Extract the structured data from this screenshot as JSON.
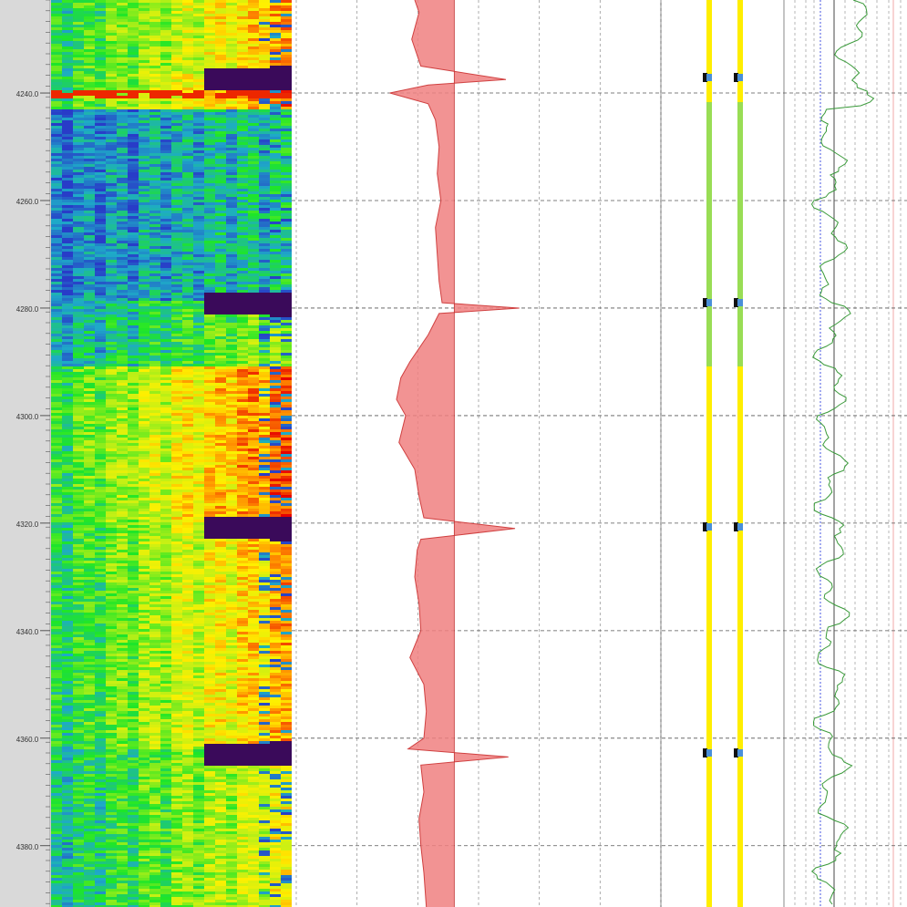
{
  "chart_data": {
    "type": "well-log",
    "ylim": [
      4222.7,
      4391.4
    ],
    "yticks": [
      {
        "value": 4240,
        "label": "4240.0"
      },
      {
        "value": 4260,
        "label": "4260.0"
      },
      {
        "value": 4280,
        "label": "4280.0"
      },
      {
        "value": 4300,
        "label": "4300.0"
      },
      {
        "value": 4320,
        "label": "4320.0"
      },
      {
        "value": 4340,
        "label": "4340.0"
      },
      {
        "value": 4360,
        "label": "4360.0"
      },
      {
        "value": 4380,
        "label": "4380.0"
      }
    ],
    "xlim": [
      0,
      6
    ],
    "xticks": [
      0,
      1,
      2,
      3,
      4,
      5,
      6
    ],
    "grid": true,
    "baseline": 2.6,
    "series": [
      {
        "color": "#f08080",
        "x": [
          4222.7,
          4225,
          4230,
          4235,
          4237.5,
          4238.5,
          4240,
          4242,
          4245,
          4250,
          4255,
          4260,
          4265,
          4270,
          4275,
          4279,
          4280,
          4281,
          4285,
          4290,
          4293,
          4297,
          4300,
          4305,
          4310,
          4315,
          4319,
          4321,
          4323,
          4325,
          4330,
          4335,
          4340,
          4345,
          4350,
          4355,
          4360,
          4362,
          4363.5,
          4365,
          4370,
          4375,
          4380,
          4385,
          4391.4
        ],
        "values": [
          1.95,
          2.02,
          1.9,
          2.05,
          3.45,
          2.17,
          1.54,
          2.17,
          2.29,
          2.35,
          2.32,
          2.38,
          2.29,
          2.32,
          2.35,
          2.4,
          3.67,
          2.35,
          2.17,
          1.87,
          1.72,
          1.65,
          1.8,
          1.69,
          1.95,
          2.02,
          2.1,
          3.6,
          2.05,
          1.99,
          1.95,
          2.02,
          2.05,
          1.87,
          2.1,
          2.14,
          2.1,
          1.84,
          3.49,
          2.05,
          2.1,
          2.02,
          2.05,
          2.1,
          2.14
        ]
      }
    ]
  }
}
